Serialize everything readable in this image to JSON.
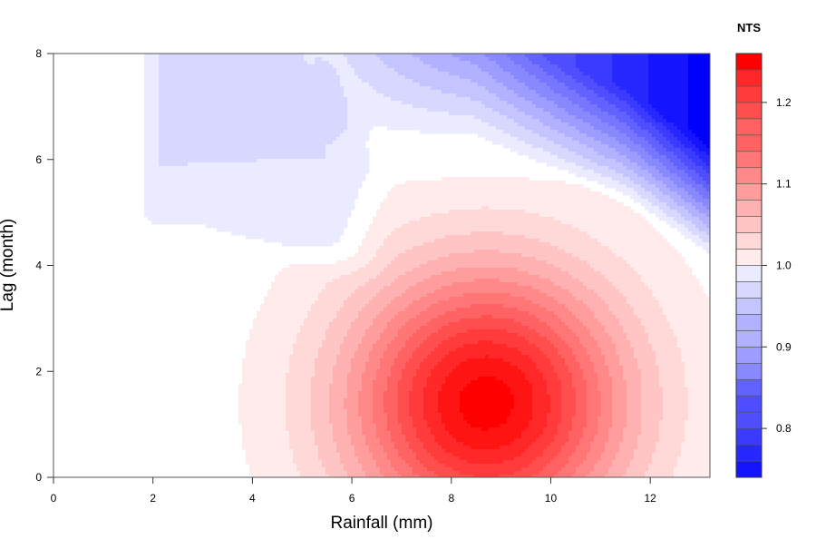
{
  "chart_data": {
    "type": "heatmap",
    "subtype": "filled-contour",
    "xlabel": "Rainfall (mm)",
    "ylabel": "Lag (month)",
    "xlim": [
      0,
      13.2
    ],
    "ylim": [
      0,
      8
    ],
    "x_ticks": [
      0,
      2,
      4,
      6,
      8,
      10,
      12
    ],
    "y_ticks": [
      0,
      2,
      4,
      6,
      8
    ],
    "colorbar": {
      "title": "NTS",
      "range": [
        0.74,
        1.26
      ],
      "step": 0.02,
      "ticks": [
        0.8,
        0.9,
        1.0,
        1.1,
        1.2
      ],
      "tick_labels": [
        "0.8",
        "0.9",
        "1.0",
        "1.1",
        "1.2"
      ],
      "low_color": "#0000ff",
      "mid_color": "#ffffff",
      "high_color": "#ff0000"
    },
    "surface": {
      "data_start_x": 0.9,
      "features": [
        {
          "kind": "peak",
          "x": 8.7,
          "y": 1.4,
          "value": 1.26,
          "sx": 2.3,
          "sy": 2.1
        },
        {
          "kind": "trough",
          "x": 13.2,
          "y": 8.0,
          "value": 0.74
        },
        {
          "kind": "plateau",
          "x": 3.0,
          "y": 6.8,
          "value": 0.97
        }
      ]
    }
  }
}
